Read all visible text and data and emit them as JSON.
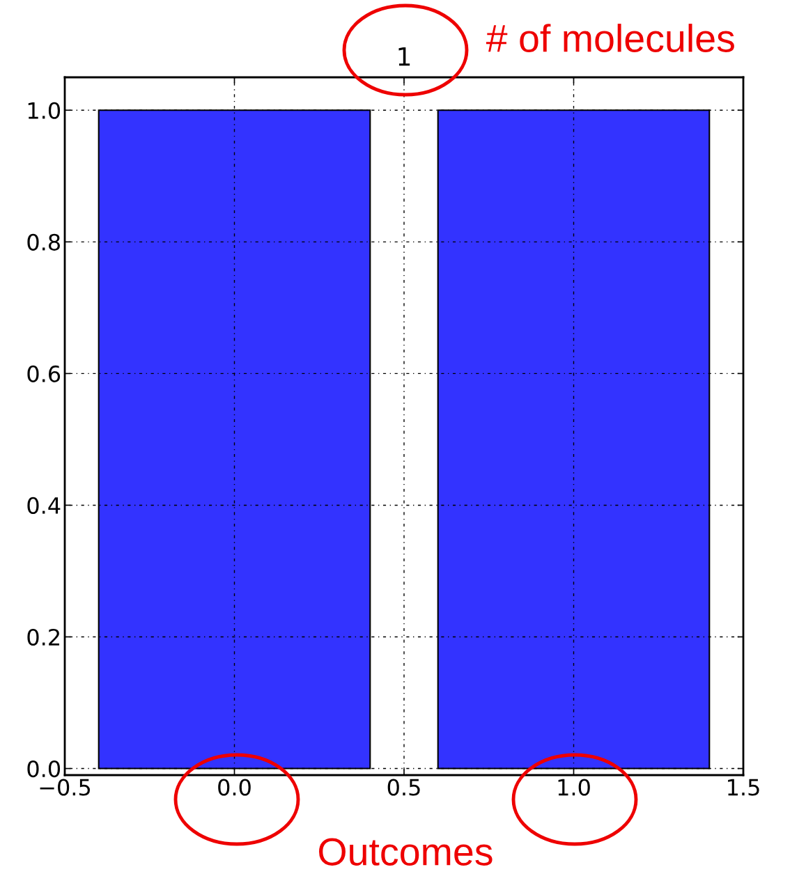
{
  "chart_data": {
    "type": "bar",
    "title": "1",
    "x": [
      0,
      1
    ],
    "values": [
      1,
      1
    ],
    "color": "#3333ff",
    "xlim": [
      -0.5,
      1.5
    ],
    "xticks": [
      {
        "value": -0.5,
        "label": "−0.5"
      },
      {
        "value": 0,
        "label": "0.0"
      },
      0.5,
      {
        "value": 1,
        "label": "1.0"
      },
      1.5
    ],
    "ylim": [
      -0.01,
      1.05
    ],
    "yticks": [
      {
        "value": 0,
        "label": "0.0"
      },
      0.2,
      0.4,
      0.6,
      0.8,
      {
        "value": 1,
        "label": "1.0"
      }
    ],
    "grid": true,
    "annotations": [
      "# of molecules",
      "Outcomes"
    ]
  }
}
